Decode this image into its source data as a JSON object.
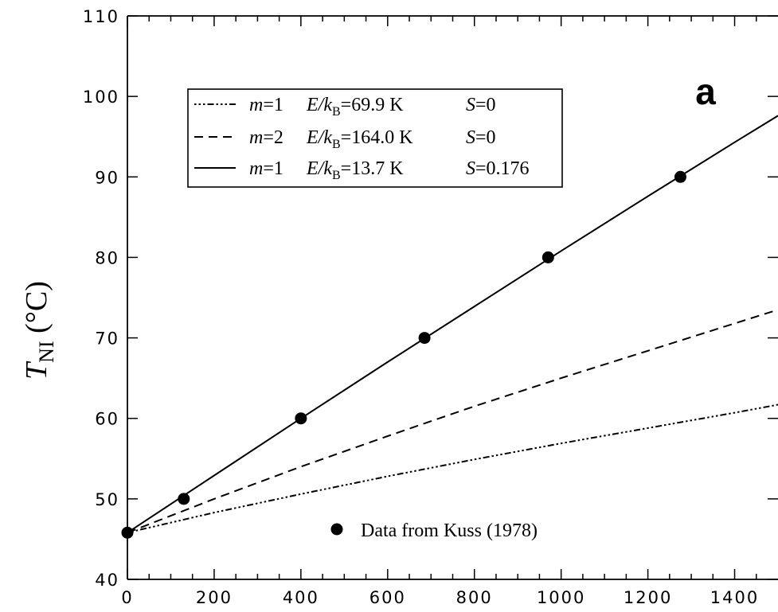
{
  "chart_data": {
    "type": "line",
    "panel_label": "a",
    "ylabel_main": "T",
    "ylabel_sub": "NI",
    "ylabel_unit": " (°C)",
    "xlim": [
      0,
      1500
    ],
    "ylim": [
      40,
      110
    ],
    "x_ticks": [
      "0",
      "200",
      "400",
      "600",
      "800",
      "1000",
      "1200",
      "1400"
    ],
    "y_ticks": [
      "40",
      "50",
      "60",
      "70",
      "80",
      "90",
      "100",
      "110"
    ],
    "grid": false,
    "legend_position": "top-left",
    "series": [
      {
        "key": "dashdot",
        "legend": {
          "m": "m=1",
          "e": "69.9 K",
          "s": "S=0"
        },
        "x": [
          0,
          200,
          400,
          600,
          800,
          1000,
          1200,
          1400,
          1500
        ],
        "y": [
          45.8,
          48.3,
          50.6,
          52.8,
          54.9,
          56.9,
          58.8,
          60.7,
          61.7
        ]
      },
      {
        "key": "dashed",
        "legend": {
          "m": "m=2",
          "e": "164.0 K",
          "s": "S=0"
        },
        "x": [
          0,
          200,
          400,
          600,
          800,
          1000,
          1200,
          1400,
          1500
        ],
        "y": [
          45.8,
          50.0,
          54.0,
          57.8,
          61.5,
          65.0,
          68.4,
          71.8,
          73.5
        ]
      },
      {
        "key": "solid",
        "legend": {
          "m": "m=1",
          "e": "13.7 K",
          "s": "S=0.176"
        },
        "x": [
          0,
          200,
          400,
          600,
          800,
          1000,
          1200,
          1400,
          1500
        ],
        "y": [
          45.8,
          52.9,
          60.0,
          67.0,
          73.9,
          80.8,
          87.6,
          94.3,
          97.6
        ]
      }
    ],
    "data_points": {
      "label": "Data from Kuss (1978)",
      "x": [
        0,
        130,
        400,
        685,
        970,
        1275
      ],
      "y": [
        45.8,
        50.0,
        60.0,
        70.0,
        80.0,
        90.0
      ]
    }
  }
}
